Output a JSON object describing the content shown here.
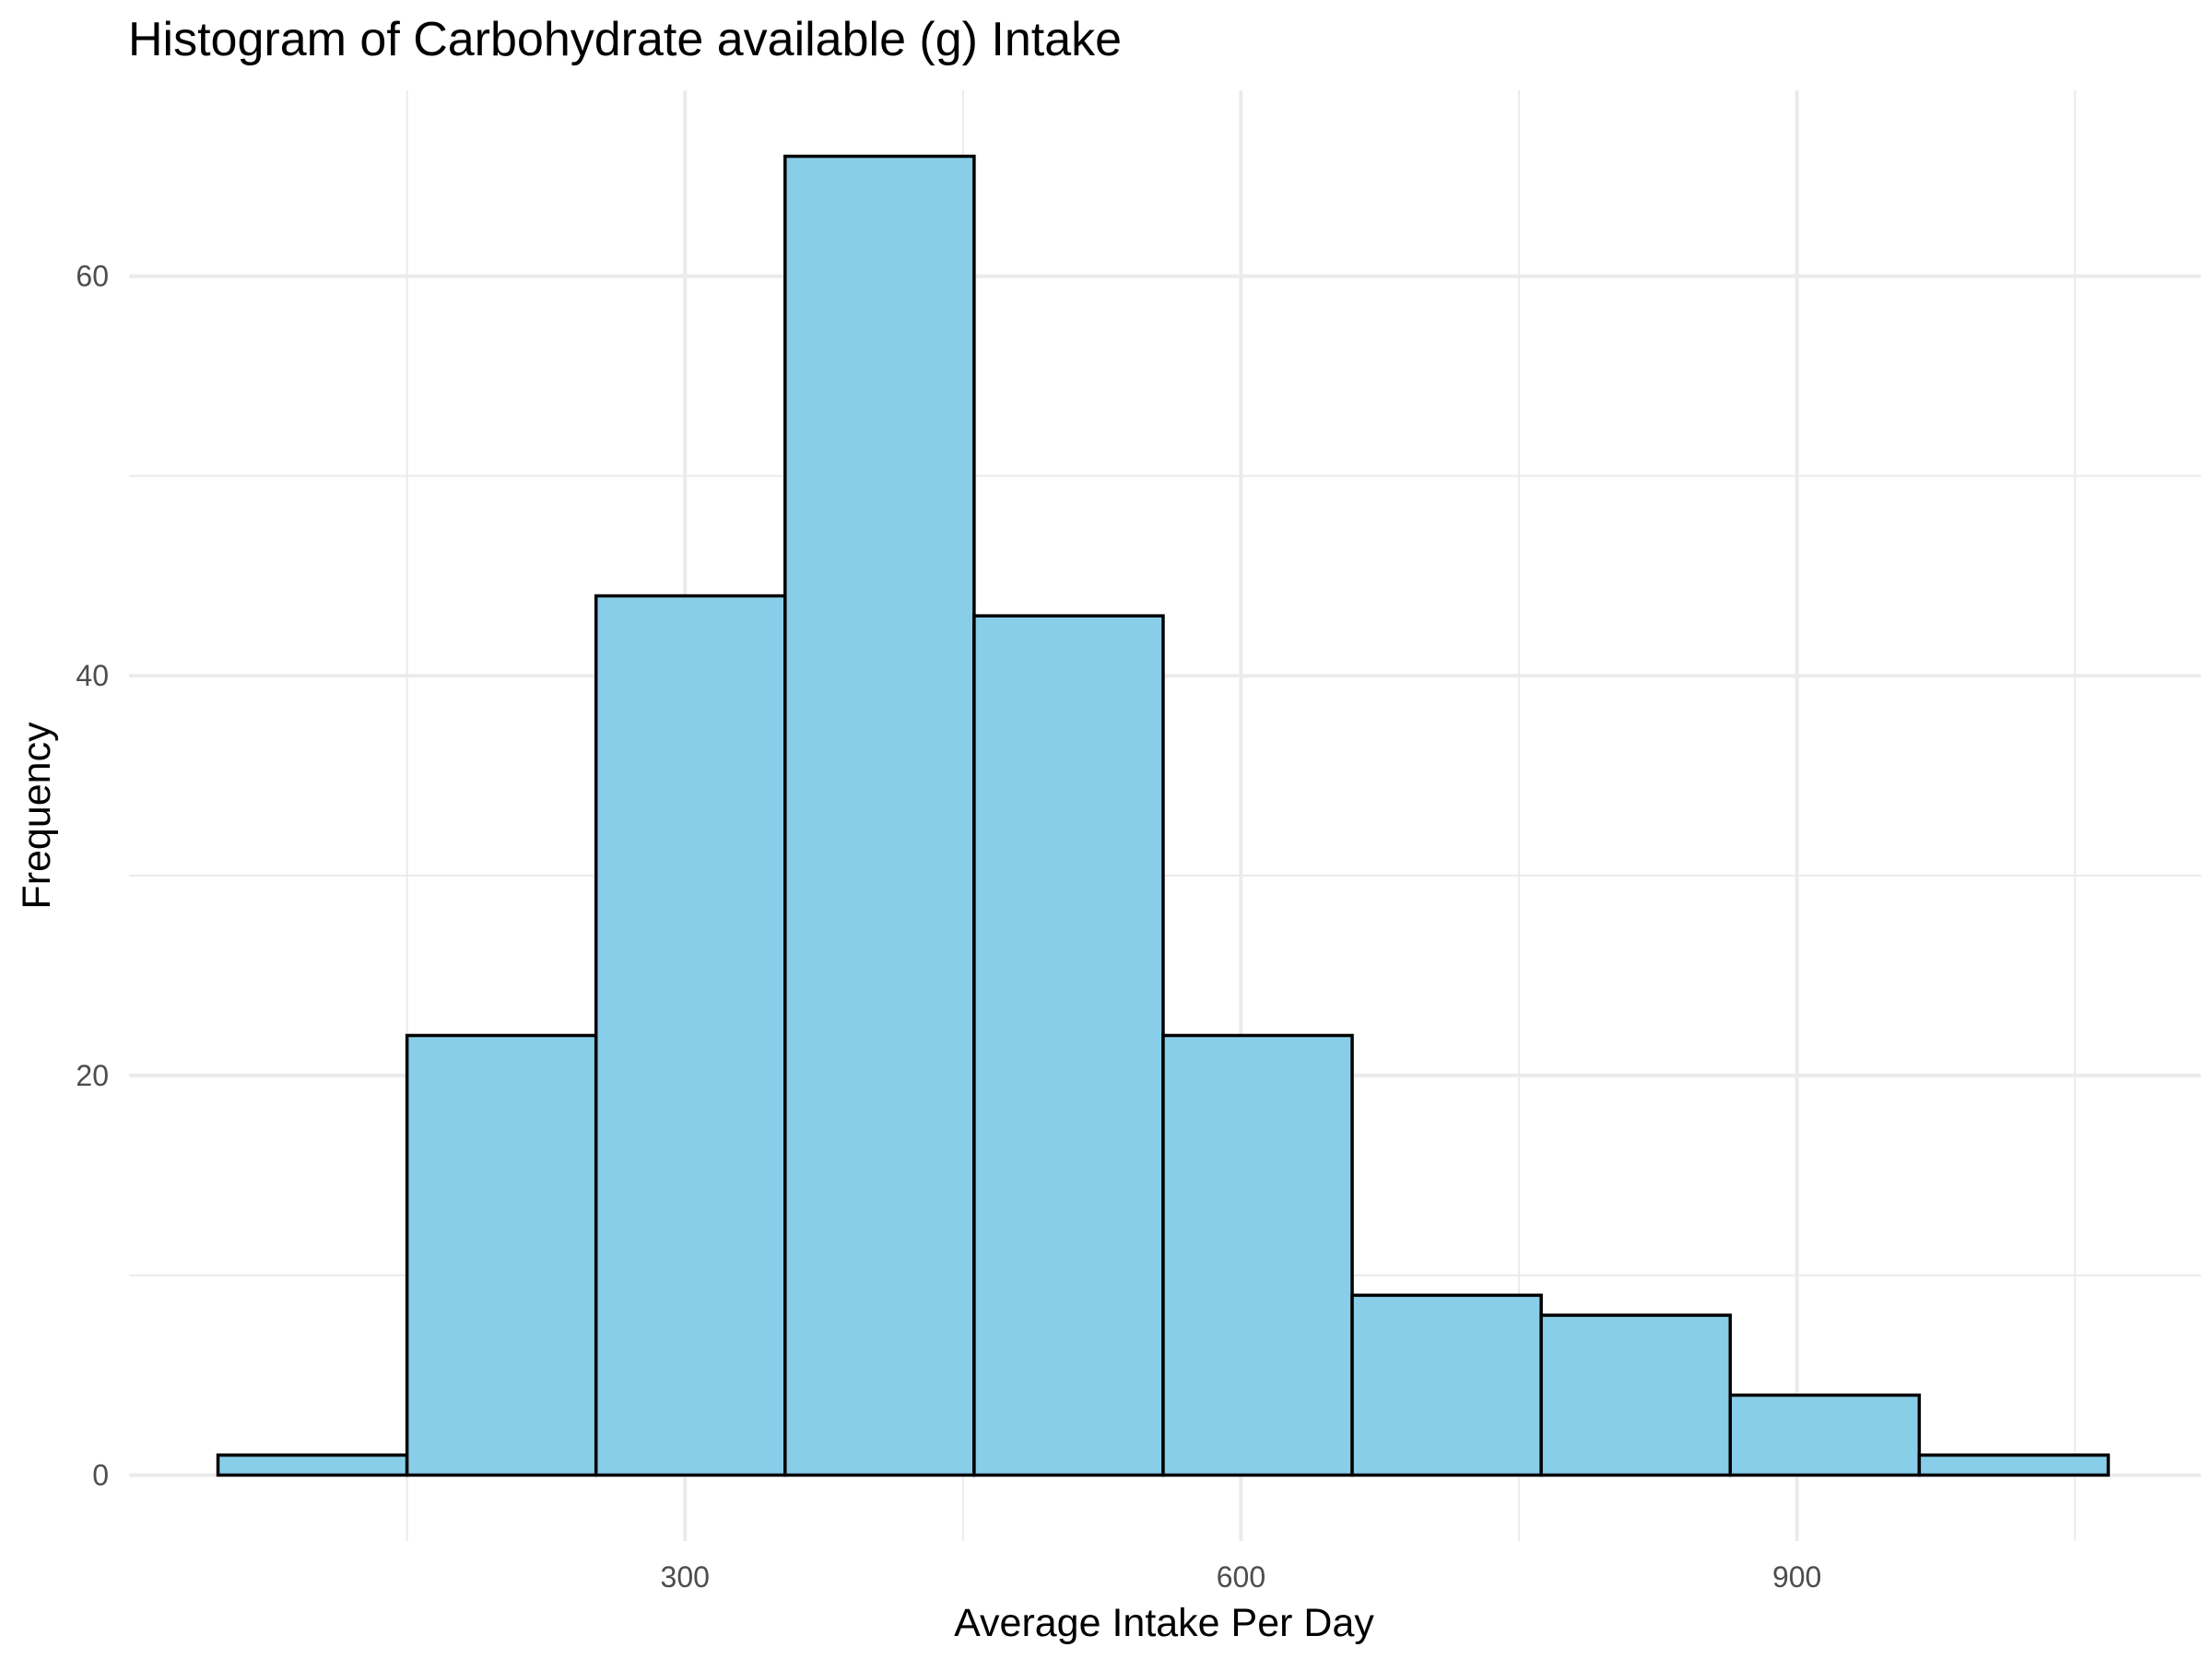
{
  "chart_data": {
    "type": "bar",
    "subtype": "histogram",
    "title": "Histogram of Carbohydrate available (g) Intake",
    "xlabel": "Average Intake Per Day",
    "ylabel": "Frequency",
    "bins": [
      {
        "start": 48,
        "end": 150,
        "count": 1
      },
      {
        "start": 150,
        "end": 252,
        "count": 22
      },
      {
        "start": 252,
        "end": 354,
        "count": 44
      },
      {
        "start": 354,
        "end": 456,
        "count": 66
      },
      {
        "start": 456,
        "end": 558,
        "count": 43
      },
      {
        "start": 558,
        "end": 660,
        "count": 22
      },
      {
        "start": 660,
        "end": 762,
        "count": 9
      },
      {
        "start": 762,
        "end": 864,
        "count": 8
      },
      {
        "start": 864,
        "end": 966,
        "count": 4
      },
      {
        "start": 966,
        "end": 1068,
        "count": 1
      }
    ],
    "xlim": [
      0,
      1118
    ],
    "ylim": [
      -3.3,
      69.3
    ],
    "x_major_ticks": [
      300,
      600,
      900
    ],
    "x_minor_gridlines": [
      150,
      450,
      750,
      1050
    ],
    "y_major_ticks": [
      0,
      20,
      40,
      60
    ],
    "y_minor_gridlines": [
      10,
      30,
      50
    ],
    "grid": true,
    "legend": "none",
    "colors": {
      "bar_fill": "#89CEE9",
      "bar_outline": "#000000",
      "grid": "#EBEBEB",
      "tick_text": "#4D4D4D",
      "background": "#FFFFFF"
    }
  }
}
